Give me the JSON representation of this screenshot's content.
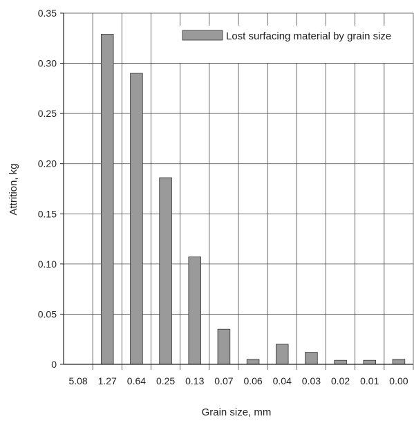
{
  "chart_data": {
    "type": "bar",
    "xlabel": "Grain size, mm",
    "ylabel": "Attrition, kg",
    "categories": [
      "5.08",
      "1.27",
      "0.64",
      "0.25",
      "0.13",
      "0.07",
      "0.06",
      "0.04",
      "0.03",
      "0.02",
      "0.01",
      "0.00"
    ],
    "series": [
      {
        "name": "Lost surfacing material by grain size",
        "values": [
          0,
          0.329,
          0.29,
          0.186,
          0.107,
          0.035,
          0.005,
          0.02,
          0.012,
          0.004,
          0.004,
          0.005
        ]
      }
    ],
    "ylim": [
      0,
      0.35
    ],
    "yticks": [
      "0",
      "0.05",
      "0.10",
      "0.15",
      "0.20",
      "0.25",
      "0.30",
      "0.35"
    ],
    "grid": true,
    "legend_position": "top-right",
    "colors": {
      "bar_fill": "#9a9a9a",
      "bar_stroke": "#333333",
      "grid": "#444444"
    }
  }
}
